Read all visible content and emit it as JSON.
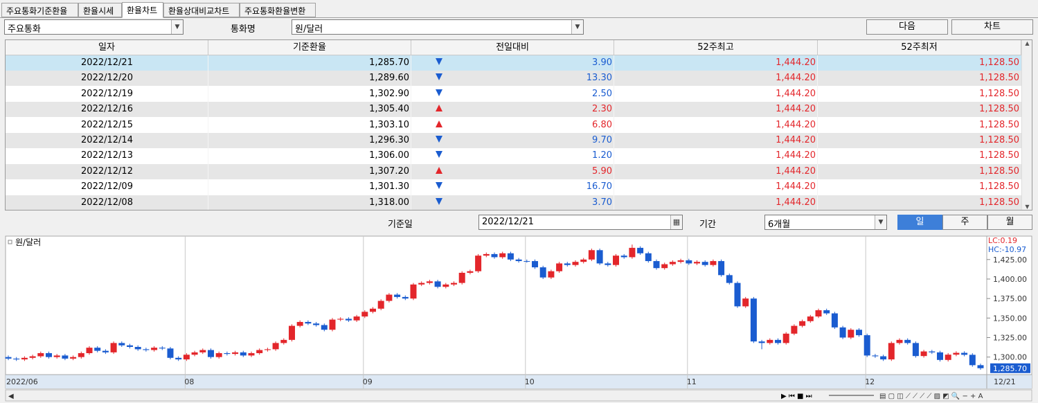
{
  "tabs": [
    "주요통화기준환율",
    "환율시세",
    "환율차트",
    "환율상대비교차트",
    "주요통화환율변환"
  ],
  "toolbar": {
    "group": "주요통화",
    "currency_label": "통화명",
    "currency": "원/달러",
    "buttons": [
      "다음",
      "차트"
    ]
  },
  "table": {
    "columns": [
      "일자",
      "기준환율",
      "전일대비",
      "52주최고",
      "52주최저"
    ],
    "directions": [
      "down",
      "down",
      "down",
      "up",
      "up",
      "down",
      "down",
      "up",
      "down",
      "down"
    ],
    "rows": [
      [
        "2022/12/21",
        "1,285.70",
        "3.90",
        "1,444.20",
        "1,128.50"
      ],
      [
        "2022/12/20",
        "1,289.60",
        "13.30",
        "1,444.20",
        "1,128.50"
      ],
      [
        "2022/12/19",
        "1,302.90",
        "2.50",
        "1,444.20",
        "1,128.50"
      ],
      [
        "2022/12/16",
        "1,305.40",
        "2.30",
        "1,444.20",
        "1,128.50"
      ],
      [
        "2022/12/15",
        "1,303.10",
        "6.80",
        "1,444.20",
        "1,128.50"
      ],
      [
        "2022/12/14",
        "1,296.30",
        "9.70",
        "1,444.20",
        "1,128.50"
      ],
      [
        "2022/12/13",
        "1,306.00",
        "1.20",
        "1,444.20",
        "1,128.50"
      ],
      [
        "2022/12/12",
        "1,307.20",
        "5.90",
        "1,444.20",
        "1,128.50"
      ],
      [
        "2022/12/09",
        "1,301.30",
        "16.70",
        "1,444.20",
        "1,128.50"
      ],
      [
        "2022/12/08",
        "1,318.00",
        "3.70",
        "1,444.20",
        "1,128.50"
      ]
    ]
  },
  "date_bar": {
    "date_label": "기준일",
    "date": "2022/12/21",
    "period_label": "기간",
    "period": "6개월",
    "buttons": [
      "일",
      "주",
      "월"
    ]
  },
  "chart": {
    "type": "candlestick",
    "legend": "원/달러",
    "lc": "LC:0.19",
    "hc": "HC:-10.97",
    "up_color": "#e3262b",
    "down_color": "#1a5cd0",
    "ylim": [
      1277.5,
      1455
    ],
    "yticks": [
      {
        "value": 1300,
        "label": "1,300.00"
      },
      {
        "value": 1325,
        "label": "1,325.00"
      },
      {
        "value": 1350,
        "label": "1,350.00"
      },
      {
        "value": 1375,
        "label": "1,375.00"
      },
      {
        "value": 1400,
        "label": "1,400.00"
      },
      {
        "value": 1425,
        "label": "1,425.00"
      }
    ],
    "last_price": {
      "value": 1285.7,
      "label": "1,285.70"
    },
    "categories": [
      "2022/06",
      null,
      null,
      null,
      null,
      null,
      null,
      null,
      null,
      null,
      null,
      null,
      null,
      null,
      null,
      null,
      null,
      null,
      null,
      null,
      null,
      null,
      "08",
      null,
      null,
      null,
      null,
      null,
      null,
      null,
      null,
      null,
      null,
      null,
      null,
      null,
      null,
      null,
      null,
      null,
      null,
      null,
      null,
      null,
      "09",
      null,
      null,
      null,
      null,
      null,
      null,
      null,
      null,
      null,
      null,
      null,
      null,
      null,
      null,
      null,
      null,
      null,
      null,
      null,
      "10",
      null,
      null,
      null,
      null,
      null,
      null,
      null,
      null,
      null,
      null,
      null,
      null,
      null,
      null,
      null,
      null,
      null,
      null,
      null,
      "11",
      null,
      null,
      null,
      null,
      null,
      null,
      null,
      null,
      null,
      null,
      null,
      null,
      null,
      null,
      null,
      null,
      null,
      null,
      null,
      null,
      null,
      "12",
      null,
      null,
      null,
      null,
      null,
      null,
      null,
      null,
      null,
      null,
      null,
      null,
      null,
      "12/21"
    ],
    "candles": [
      [
        1300,
        1302,
        1296,
        1298
      ],
      [
        1298,
        1300,
        1295,
        1297
      ],
      [
        1297,
        1301,
        1295,
        1299
      ],
      [
        1299,
        1303,
        1297,
        1301
      ],
      [
        1301,
        1307,
        1299,
        1305
      ],
      [
        1305,
        1307,
        1298,
        1300
      ],
      [
        1300,
        1304,
        1298,
        1302
      ],
      [
        1302,
        1304,
        1296,
        1298
      ],
      [
        1298,
        1302,
        1296,
        1300
      ],
      [
        1300,
        1307,
        1298,
        1305
      ],
      [
        1305,
        1314,
        1303,
        1312
      ],
      [
        1312,
        1314,
        1306,
        1308
      ],
      [
        1308,
        1310,
        1304,
        1306
      ],
      [
        1306,
        1320,
        1304,
        1318
      ],
      [
        1318,
        1320,
        1313,
        1315
      ],
      [
        1315,
        1317,
        1311,
        1313
      ],
      [
        1313,
        1315,
        1308,
        1310
      ],
      [
        1310,
        1312,
        1307,
        1309
      ],
      [
        1309,
        1314,
        1307,
        1312
      ],
      [
        1312,
        1314,
        1309,
        1311
      ],
      [
        1311,
        1313,
        1297,
        1299
      ],
      [
        1299,
        1301,
        1295,
        1297
      ],
      [
        1297,
        1305,
        1295,
        1303
      ],
      [
        1303,
        1308,
        1301,
        1306
      ],
      [
        1306,
        1311,
        1304,
        1309
      ],
      [
        1309,
        1311,
        1298,
        1300
      ],
      [
        1300,
        1307,
        1298,
        1305
      ],
      [
        1305,
        1307,
        1302,
        1304
      ],
      [
        1304,
        1308,
        1302,
        1306
      ],
      [
        1306,
        1308,
        1300,
        1302
      ],
      [
        1302,
        1307,
        1300,
        1305
      ],
      [
        1305,
        1311,
        1303,
        1309
      ],
      [
        1309,
        1312,
        1307,
        1310
      ],
      [
        1310,
        1320,
        1308,
        1318
      ],
      [
        1318,
        1324,
        1316,
        1322
      ],
      [
        1322,
        1342,
        1320,
        1340
      ],
      [
        1340,
        1347,
        1338,
        1345
      ],
      [
        1345,
        1347,
        1341,
        1343
      ],
      [
        1343,
        1345,
        1339,
        1341
      ],
      [
        1341,
        1343,
        1333,
        1335
      ],
      [
        1335,
        1350,
        1333,
        1348
      ],
      [
        1348,
        1351,
        1346,
        1349
      ],
      [
        1349,
        1351,
        1345,
        1347
      ],
      [
        1347,
        1354,
        1345,
        1352
      ],
      [
        1352,
        1360,
        1350,
        1358
      ],
      [
        1358,
        1364,
        1356,
        1362
      ],
      [
        1362,
        1374,
        1360,
        1372
      ],
      [
        1372,
        1382,
        1370,
        1380
      ],
      [
        1380,
        1382,
        1375,
        1377
      ],
      [
        1377,
        1379,
        1373,
        1375
      ],
      [
        1375,
        1395,
        1373,
        1393
      ],
      [
        1393,
        1397,
        1391,
        1395
      ],
      [
        1395,
        1399,
        1393,
        1397
      ],
      [
        1397,
        1399,
        1388,
        1390
      ],
      [
        1390,
        1395,
        1388,
        1393
      ],
      [
        1393,
        1397,
        1391,
        1395
      ],
      [
        1395,
        1410,
        1393,
        1408
      ],
      [
        1408,
        1412,
        1406,
        1410
      ],
      [
        1410,
        1432,
        1408,
        1430
      ],
      [
        1430,
        1434,
        1428,
        1432
      ],
      [
        1432,
        1434,
        1426,
        1428
      ],
      [
        1428,
        1435,
        1426,
        1433
      ],
      [
        1433,
        1435,
        1423,
        1425
      ],
      [
        1425,
        1427,
        1421,
        1423
      ],
      [
        1423,
        1425,
        1421,
        1423
      ],
      [
        1423,
        1425,
        1413,
        1415
      ],
      [
        1415,
        1417,
        1400,
        1402
      ],
      [
        1402,
        1412,
        1400,
        1410
      ],
      [
        1410,
        1422,
        1408,
        1420
      ],
      [
        1420,
        1422,
        1416,
        1418
      ],
      [
        1418,
        1424,
        1416,
        1422
      ],
      [
        1422,
        1427,
        1420,
        1425
      ],
      [
        1425,
        1439,
        1423,
        1437
      ],
      [
        1437,
        1439,
        1418,
        1420
      ],
      [
        1420,
        1422,
        1416,
        1418
      ],
      [
        1418,
        1432,
        1416,
        1430
      ],
      [
        1430,
        1432,
        1426,
        1428
      ],
      [
        1428,
        1444.2,
        1426,
        1440
      ],
      [
        1440,
        1442,
        1431,
        1433
      ],
      [
        1433,
        1435,
        1421,
        1423
      ],
      [
        1423,
        1425,
        1412,
        1414
      ],
      [
        1414,
        1421,
        1412,
        1419
      ],
      [
        1419,
        1424,
        1417,
        1422
      ],
      [
        1422,
        1426,
        1420,
        1424
      ],
      [
        1424,
        1426,
        1418,
        1420
      ],
      [
        1420,
        1424,
        1418,
        1422
      ],
      [
        1422,
        1424,
        1416,
        1418
      ],
      [
        1418,
        1425,
        1416,
        1423
      ],
      [
        1423,
        1425,
        1403,
        1405
      ],
      [
        1405,
        1407,
        1393,
        1395
      ],
      [
        1395,
        1397,
        1363,
        1365
      ],
      [
        1365,
        1377,
        1363,
        1375
      ],
      [
        1375,
        1377,
        1318,
        1320
      ],
      [
        1320,
        1322,
        1310,
        1318
      ],
      [
        1318,
        1324,
        1316,
        1322
      ],
      [
        1322,
        1324,
        1316,
        1318
      ],
      [
        1318,
        1332,
        1316,
        1330
      ],
      [
        1330,
        1342,
        1328,
        1340
      ],
      [
        1340,
        1348,
        1338,
        1346
      ],
      [
        1346,
        1354,
        1344,
        1352
      ],
      [
        1352,
        1362,
        1350,
        1360
      ],
      [
        1360,
        1362,
        1354,
        1356
      ],
      [
        1356,
        1358,
        1336,
        1338
      ],
      [
        1338,
        1340,
        1323,
        1325
      ],
      [
        1325,
        1337,
        1323,
        1335
      ],
      [
        1335,
        1337,
        1326,
        1328
      ],
      [
        1328,
        1330,
        1300,
        1302
      ],
      [
        1302,
        1304,
        1299,
        1301
      ],
      [
        1301,
        1303,
        1295,
        1297
      ],
      [
        1297,
        1320,
        1295,
        1318
      ],
      [
        1318,
        1324,
        1316,
        1322
      ],
      [
        1322,
        1324,
        1316,
        1318
      ],
      [
        1318,
        1320,
        1299.3,
        1301.3
      ],
      [
        1301.3,
        1309.2,
        1299.3,
        1307.2
      ],
      [
        1307.2,
        1309.2,
        1304,
        1306
      ],
      [
        1306,
        1308,
        1294.3,
        1296.3
      ],
      [
        1296.3,
        1305.1,
        1294.3,
        1303.1
      ],
      [
        1303.1,
        1307.4,
        1301.1,
        1305.4
      ],
      [
        1305.4,
        1307.4,
        1300.9,
        1302.9
      ],
      [
        1302.9,
        1304.9,
        1287.6,
        1289.6
      ],
      [
        1289.6,
        1291.6,
        1283.7,
        1285.7
      ]
    ]
  }
}
